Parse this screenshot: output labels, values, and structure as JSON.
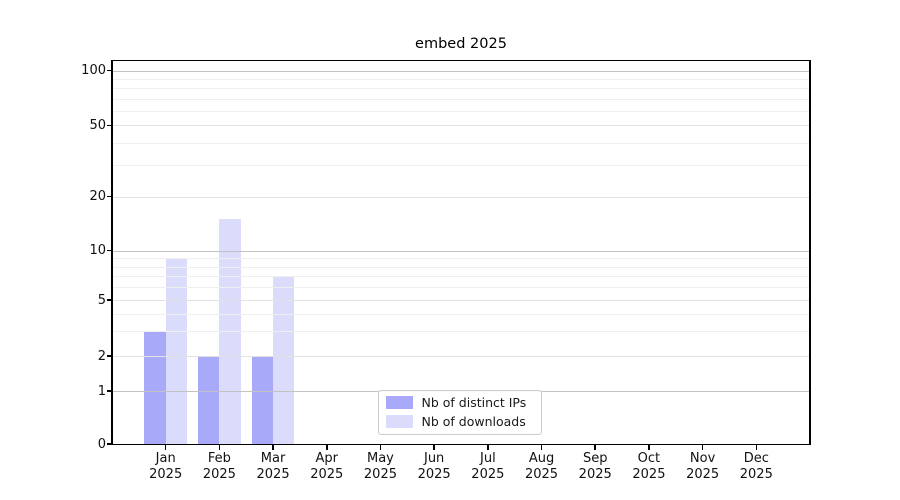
{
  "title": "embed 2025",
  "chart_data": {
    "type": "bar",
    "title": "embed 2025",
    "categories": [
      "Jan",
      "Feb",
      "Mar",
      "Apr",
      "May",
      "Jun",
      "Jul",
      "Aug",
      "Sep",
      "Oct",
      "Nov",
      "Dec"
    ],
    "x_tick_second_line": "2025",
    "series": [
      {
        "name": "Nb of distinct IPs",
        "color": "#a8a9f8",
        "values": [
          3,
          2,
          2,
          0,
          0,
          0,
          0,
          0,
          0,
          0,
          0,
          0
        ]
      },
      {
        "name": "Nb of downloads",
        "color": "#dbdcfb",
        "values": [
          9,
          15,
          7,
          0,
          0,
          0,
          0,
          0,
          0,
          0,
          0,
          0
        ]
      }
    ],
    "xlabel": "",
    "ylabel": "",
    "y_scale": "symlog",
    "y_ticks": [
      0,
      1,
      2,
      5,
      10,
      20,
      50,
      100
    ],
    "y_minor_ticks": [
      3,
      4,
      6,
      7,
      8,
      9,
      30,
      40,
      60,
      70,
      80,
      90
    ],
    "ylim": [
      0,
      110
    ],
    "grid": true,
    "grid_above_bars": true,
    "legend_position": "lower center inside",
    "colors": {
      "grid_decade": "#c2c2c2",
      "grid_sub": "#e2e2e2",
      "grid_minor": "#efefef",
      "axis": "#000000",
      "text": "#111111"
    }
  }
}
